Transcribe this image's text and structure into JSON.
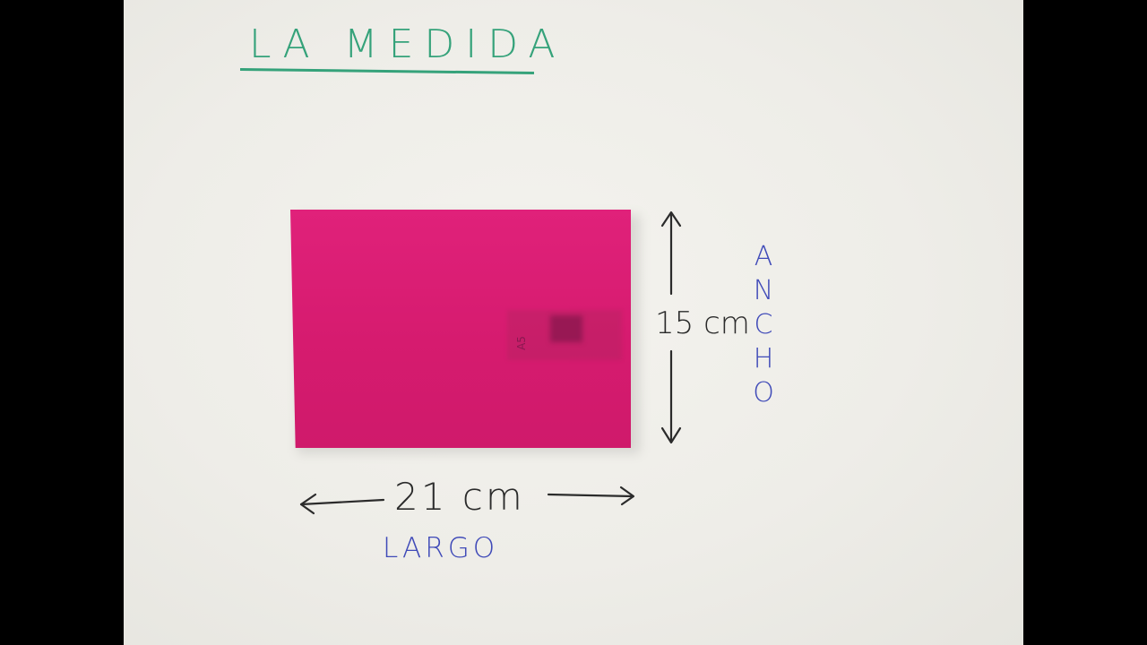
{
  "title": "LA MEDIDA",
  "notebook": {
    "color": "#d81c70",
    "cover_label": "A5"
  },
  "measurements": {
    "height_value": "15 cm",
    "width_value": "21 cm"
  },
  "labels": {
    "width_word": "LARGO",
    "height_word": "ANCHO",
    "height_letters": [
      "A",
      "N",
      "C",
      "H",
      "O"
    ]
  },
  "colors": {
    "title": "#35a27a",
    "dimension": "#2b2b2b",
    "words": "#3f4ab8",
    "board": "#efeee9"
  }
}
